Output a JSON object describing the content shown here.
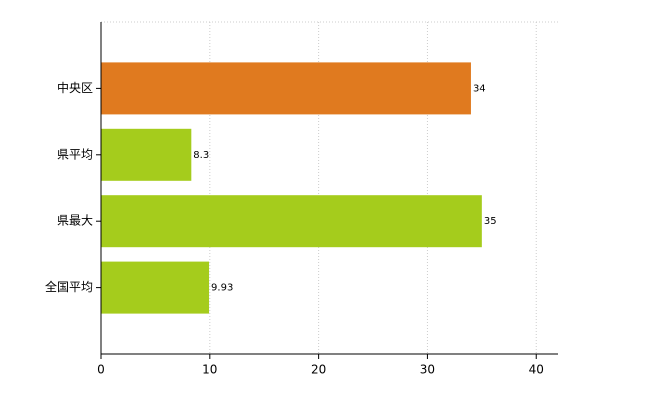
{
  "chart_data": {
    "type": "bar",
    "orientation": "horizontal",
    "categories": [
      "中央区",
      "県平均",
      "県最大",
      "全国平均"
    ],
    "values": [
      34,
      8.3,
      35,
      9.93
    ],
    "colors": [
      "#e07a1f",
      "#a5cc1c",
      "#a5cc1c",
      "#a5cc1c"
    ],
    "xlim": [
      0,
      42
    ],
    "xticks": [
      0,
      10,
      20,
      30,
      40
    ],
    "grid": true
  }
}
